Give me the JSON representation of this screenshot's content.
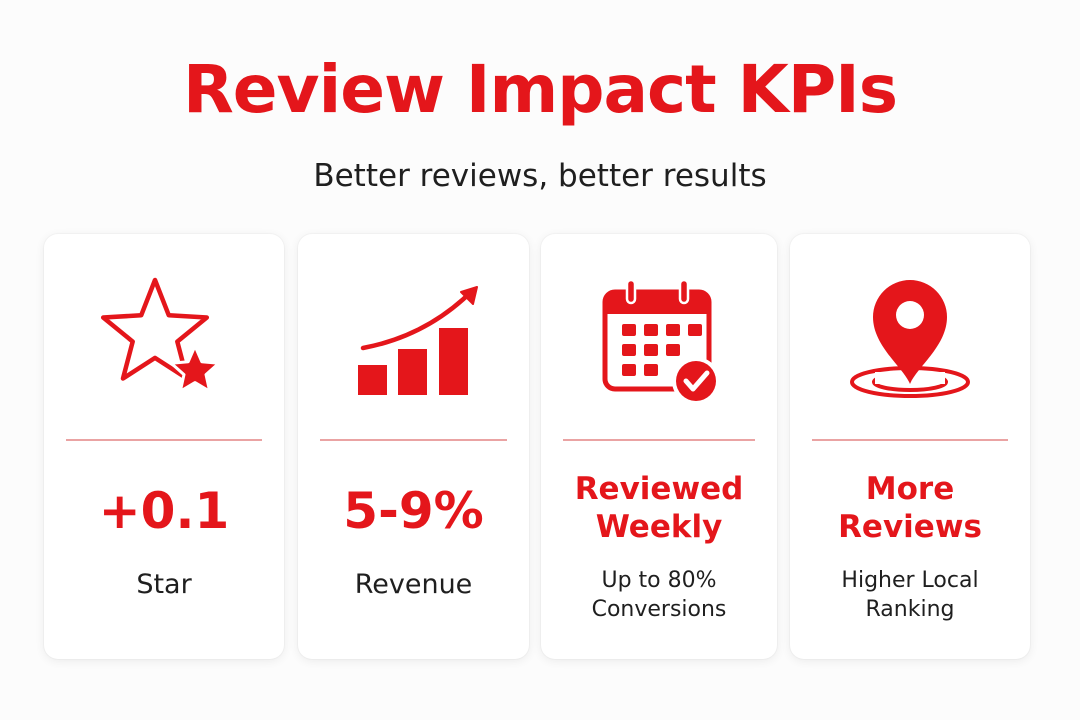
{
  "header": {
    "title": "Review Impact KPIs",
    "subtitle": "Better reviews, better results"
  },
  "colors": {
    "accent": "#e4161b",
    "text": "#1f1f1f",
    "background": "#fcfcfc",
    "card": "#ffffff",
    "divider": "#eaa3a3"
  },
  "cards": [
    {
      "icon": "star-icon",
      "metric": "+0.1",
      "label": "Star"
    },
    {
      "icon": "growth-chart-icon",
      "metric": "5-9%",
      "label": "Revenue"
    },
    {
      "icon": "calendar-check-icon",
      "metric_line1": "Reviewed",
      "metric_line2": "Weekly",
      "label_line1": "Up to 80%",
      "label_line2": "Conversions"
    },
    {
      "icon": "location-pin-icon",
      "metric_line1": "More",
      "metric_line2": "Reviews",
      "label_line1": "Higher Local",
      "label_line2": "Ranking"
    }
  ]
}
